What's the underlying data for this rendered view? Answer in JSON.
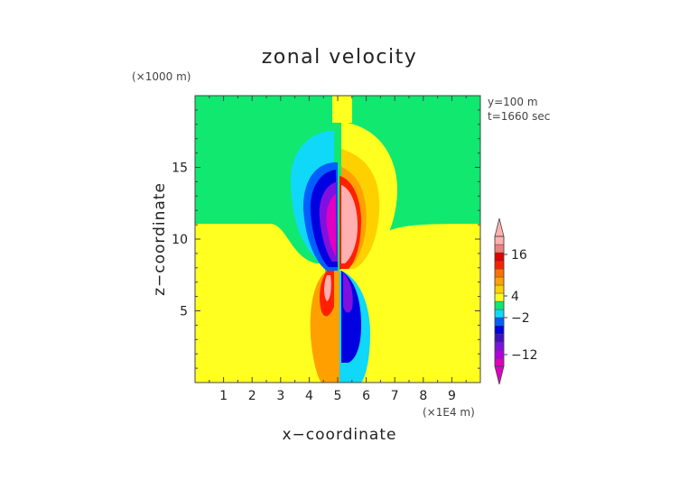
{
  "chart_data": {
    "type": "heatmap",
    "title": "zonal velocity",
    "xlabel": "x−coordinate",
    "ylabel": "z−coordinate",
    "x_unit": "(×1E4 m)",
    "y_unit": "(×1000 m)",
    "annotations": [
      "y=100 m",
      "t=1660 sec"
    ],
    "xlim": [
      0,
      10
    ],
    "ylim": [
      0,
      20
    ],
    "x_ticks": [
      "1",
      "2",
      "3",
      "4",
      "5",
      "6",
      "7",
      "8",
      "9"
    ],
    "y_ticks": [
      "5",
      "10",
      "15"
    ],
    "colorbar": {
      "tick_labels": [
        "16",
        "4",
        "−2",
        "−12"
      ],
      "extend": "both",
      "colors": [
        "#e000c0",
        "#b000e0",
        "#8010e0",
        "#4010c0",
        "#0000e0",
        "#0060ff",
        "#10d8f8",
        "#10e870",
        "#ffff20",
        "#ffd000",
        "#ffa000",
        "#ff7000",
        "#ff2000",
        "#e00000",
        "#f08080",
        "#ffb0b0"
      ]
    }
  }
}
